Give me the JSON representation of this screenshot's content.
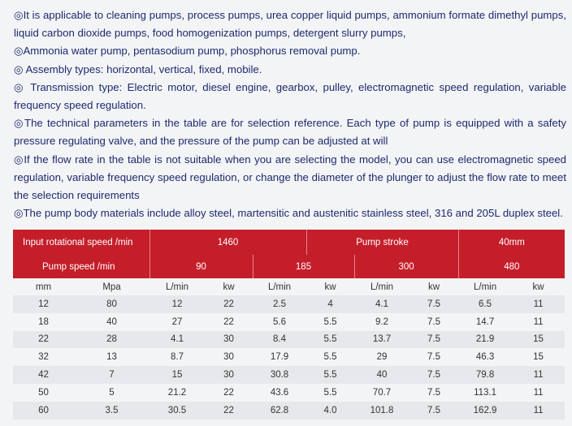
{
  "notes": [
    "◎It is applicable to cleaning pumps, process pumps, urea copper liquid pumps, ammonium formate dimethyl pumps, liquid carbon dioxide pumps, food homogenization pumps, detergent slurry pumps,",
    "◎Ammonia water pump, pentasodium pump, phosphorus removal pump.",
    "◎ Assembly types: horizontal, vertical, fixed, mobile.",
    "◎ Transmission type: Electric motor, diesel engine, gearbox, pulley, electromagnetic speed regulation, variable frequency speed regulation.",
    "◎The technical parameters in the table are for selection reference. Each type of pump is equipped with a safety pressure regulating valve, and the pressure of the pump can be adjusted at will",
    "◎If the flow rate in the table is not suitable when you are selecting the model, you can use electromagnetic speed regulation, variable frequency speed regulation, or change the diameter of the plunger to adjust the flow rate to meet the selection requirements",
    "◎The pump body materials include alloy steel, martensitic and austenitic stainless steel, 316 and 205L duplex steel."
  ],
  "table": {
    "header1": {
      "input_speed_label": "Input rotational speed /min",
      "input_speed_value": "1460",
      "stroke_label": "Pump stroke",
      "stroke_value": "40mm"
    },
    "header2": {
      "pump_speed_label": "Pump speed /min",
      "speeds": [
        "90",
        "185",
        "300",
        "480"
      ]
    },
    "units": [
      "mm",
      "Mpa",
      "L/min",
      "kw",
      "L/min",
      "kw",
      "L/min",
      "kw",
      "L/min",
      "kw"
    ],
    "rows": [
      [
        "12",
        "80",
        "12",
        "22",
        "2.5",
        "4",
        "4.1",
        "7.5",
        "6.5",
        "11"
      ],
      [
        "18",
        "40",
        "27",
        "22",
        "5.6",
        "5.5",
        "9.2",
        "7.5",
        "14.7",
        "11"
      ],
      [
        "22",
        "28",
        "4.1",
        "30",
        "8.4",
        "5.5",
        "13.7",
        "7.5",
        "21.9",
        "15"
      ],
      [
        "32",
        "13",
        "8.7",
        "30",
        "17.9",
        "5.5",
        "29",
        "7.5",
        "46.3",
        "15"
      ],
      [
        "42",
        "7",
        "15",
        "30",
        "30.8",
        "5.5",
        "40",
        "7.5",
        "79.8",
        "11"
      ],
      [
        "50",
        "5",
        "21.2",
        "22",
        "43.6",
        "5.5",
        "70.7",
        "7.5",
        "113.1",
        "11"
      ],
      [
        "60",
        "3.5",
        "30.5",
        "22",
        "62.8",
        "4.0",
        "101.8",
        "7.5",
        "162.9",
        "11"
      ]
    ]
  },
  "colors": {
    "header_red": "#c41e2a",
    "text_navy": "#1d2a6e",
    "row_stripe": "#e7e8eb",
    "background": "#f3f4f6"
  }
}
